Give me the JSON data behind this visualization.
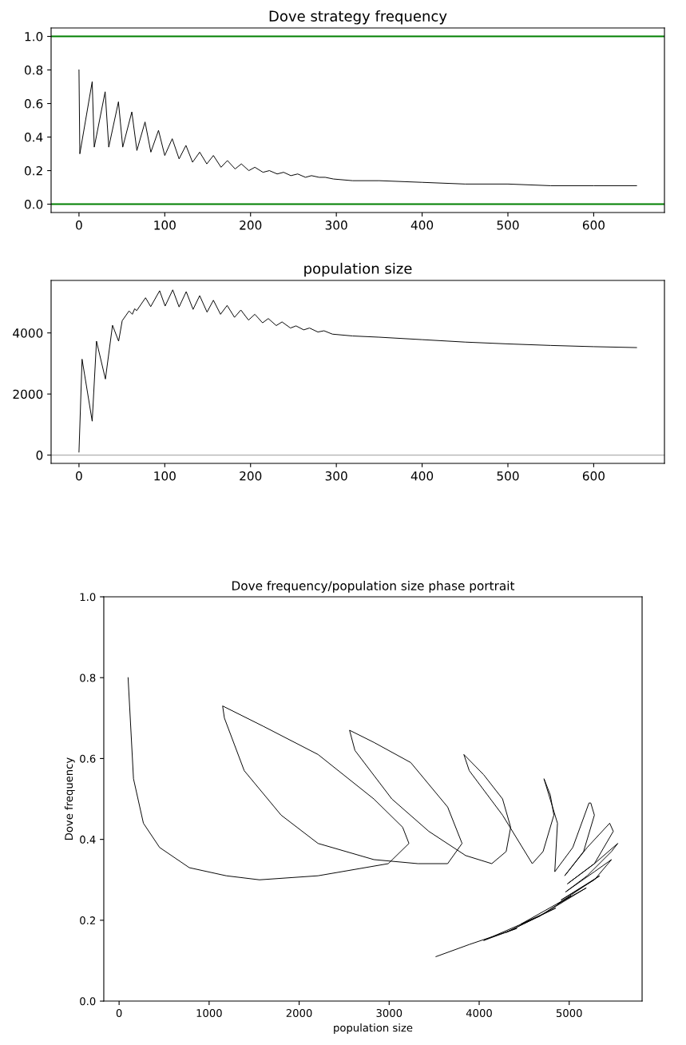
{
  "chart_data": [
    {
      "type": "line",
      "title": "Dove strategy frequency",
      "xlim": [
        -32.5,
        682.5
      ],
      "ylim": [
        -0.05,
        1.05
      ],
      "xticks": [
        0,
        100,
        200,
        300,
        400,
        500,
        600
      ],
      "yticks": [
        {
          "value": 0,
          "label": "0.0"
        },
        {
          "value": 0.2,
          "label": "0.2"
        },
        {
          "value": 0.4,
          "label": "0.4"
        },
        {
          "value": 0.6,
          "label": "0.6"
        },
        {
          "value": 0.8,
          "label": "0.8"
        },
        {
          "value": 1,
          "label": "1.0"
        }
      ],
      "grid": false,
      "legend": false,
      "marker": "none",
      "line_style": "solid",
      "ref_lines": [
        {
          "axis": "y",
          "value": 1,
          "color": "#008000"
        },
        {
          "axis": "y",
          "value": 0,
          "color": "#008000"
        }
      ],
      "series": [
        {
          "color": "#000000",
          "x": [
            0,
            1,
            15.4,
            17.8,
            30.5,
            34.7,
            46,
            51,
            61.6,
            67.5,
            77,
            83.8,
            92.7,
            100,
            108.7,
            116.7,
            124.7,
            132.4,
            140.7,
            149,
            156.7,
            165.6,
            173,
            182,
            189.3,
            198,
            205,
            214.5,
            222,
            231,
            238.5,
            247,
            255,
            264,
            271,
            280,
            287,
            296.6,
            319,
            350,
            400,
            450,
            500,
            550,
            600,
            650
          ],
          "values": [
            0.8,
            0.3,
            0.73,
            0.34,
            0.67,
            0.34,
            0.61,
            0.34,
            0.55,
            0.32,
            0.49,
            0.31,
            0.44,
            0.29,
            0.39,
            0.27,
            0.35,
            0.25,
            0.31,
            0.24,
            0.29,
            0.22,
            0.26,
            0.21,
            0.24,
            0.2,
            0.22,
            0.19,
            0.2,
            0.18,
            0.19,
            0.17,
            0.18,
            0.16,
            0.17,
            0.16,
            0.16,
            0.15,
            0.14,
            0.14,
            0.13,
            0.12,
            0.12,
            0.11,
            0.11,
            0.11
          ]
        }
      ]
    },
    {
      "type": "line",
      "title": "population size",
      "xlim": [
        -32.5,
        682.5
      ],
      "ylim": [
        -270,
        5720
      ],
      "xticks": [
        0,
        100,
        200,
        300,
        400,
        500,
        600
      ],
      "yticks": [
        0,
        2000,
        4000
      ],
      "grid": false,
      "legend": false,
      "marker": "none",
      "line_style": "solid",
      "ref_lines": [
        {
          "axis": "y",
          "value": 0,
          "color": "#b0b0b0"
        }
      ],
      "series": [
        {
          "color": "#000000",
          "x": [
            0,
            3.6,
            15.4,
            20.4,
            30.8,
            39.1,
            46.2,
            50.4,
            58.4,
            62.2,
            64.9,
            67.3,
            77.6,
            83.6,
            94,
            100.4,
            109.3,
            116.7,
            125,
            133,
            140.7,
            149.3,
            156.7,
            165,
            172.7,
            181.3,
            188.7,
            197.6,
            205,
            214,
            220.7,
            230,
            236.7,
            246.5,
            253,
            262,
            268.7,
            278.5,
            285.6,
            295.4,
            319,
            350,
            400,
            450,
            500,
            550,
            600,
            650
          ],
          "values": [
            100,
            3140,
            1110,
            3730,
            2490,
            4250,
            3730,
            4400,
            4720,
            4610,
            4790,
            4730,
            5150,
            4860,
            5380,
            4880,
            5410,
            4850,
            5350,
            4770,
            5220,
            4680,
            5070,
            4610,
            4900,
            4510,
            4750,
            4420,
            4610,
            4330,
            4470,
            4240,
            4360,
            4160,
            4230,
            4100,
            4160,
            4030,
            4070,
            3960,
            3900,
            3860,
            3780,
            3700,
            3640,
            3590,
            3550,
            3520
          ]
        }
      ]
    },
    {
      "type": "line",
      "title": "Dove frequency/population size phase portrait",
      "xlabel": "population size",
      "ylabel": "Dove frequency",
      "xlim": [
        -170,
        5810
      ],
      "ylim": [
        0,
        1
      ],
      "xticks": [
        0,
        1000,
        2000,
        3000,
        4000,
        5000
      ],
      "yticks": [
        {
          "value": 0,
          "label": "0.0"
        },
        {
          "value": 0.2,
          "label": "0.2"
        },
        {
          "value": 0.4,
          "label": "0.4"
        },
        {
          "value": 0.6,
          "label": "0.6"
        },
        {
          "value": 0.8,
          "label": "0.8"
        },
        {
          "value": 1,
          "label": "1.0"
        }
      ],
      "grid": false,
      "legend": false,
      "marker": "none",
      "line_style": "solid",
      "series": [
        {
          "color": "#000000",
          "x": [
            100,
            160,
            270,
            450,
            780,
            1190,
            1560,
            2210,
            2990,
            3220,
            3150,
            2830,
            2210,
            1600,
            1150,
            1170,
            1390,
            1800,
            2210,
            2830,
            3320,
            3650,
            3810,
            3650,
            3240,
            2830,
            2560,
            2620,
            3030,
            3440,
            3850,
            4140,
            4300,
            4350,
            4260,
            4050,
            3830,
            3890,
            4260,
            4590,
            4710,
            4830,
            4790,
            4720,
            4870,
            4840,
            5040,
            5220,
            5240,
            5280,
            5160,
            4950,
            5200,
            5450,
            5490,
            5280,
            4980,
            5280,
            5540,
            5470,
            5200,
            4960,
            5280,
            5470,
            5280,
            4910,
            5340,
            4870,
            5190,
            4670,
            5020,
            4460,
            4850,
            4300,
            4670,
            4050,
            4420,
            3890,
            3520
          ],
          "values": [
            0.8,
            0.55,
            0.44,
            0.38,
            0.33,
            0.31,
            0.3,
            0.31,
            0.34,
            0.39,
            0.43,
            0.5,
            0.61,
            0.68,
            0.73,
            0.7,
            0.57,
            0.46,
            0.39,
            0.35,
            0.34,
            0.34,
            0.39,
            0.48,
            0.59,
            0.64,
            0.67,
            0.62,
            0.5,
            0.42,
            0.36,
            0.34,
            0.37,
            0.43,
            0.5,
            0.56,
            0.61,
            0.57,
            0.46,
            0.34,
            0.37,
            0.46,
            0.51,
            0.55,
            0.44,
            0.32,
            0.38,
            0.49,
            0.49,
            0.46,
            0.37,
            0.31,
            0.38,
            0.44,
            0.42,
            0.34,
            0.29,
            0.34,
            0.39,
            0.37,
            0.31,
            0.27,
            0.32,
            0.35,
            0.3,
            0.25,
            0.31,
            0.24,
            0.28,
            0.21,
            0.26,
            0.19,
            0.23,
            0.17,
            0.21,
            0.15,
            0.18,
            0.14,
            0.11
          ]
        }
      ]
    }
  ]
}
